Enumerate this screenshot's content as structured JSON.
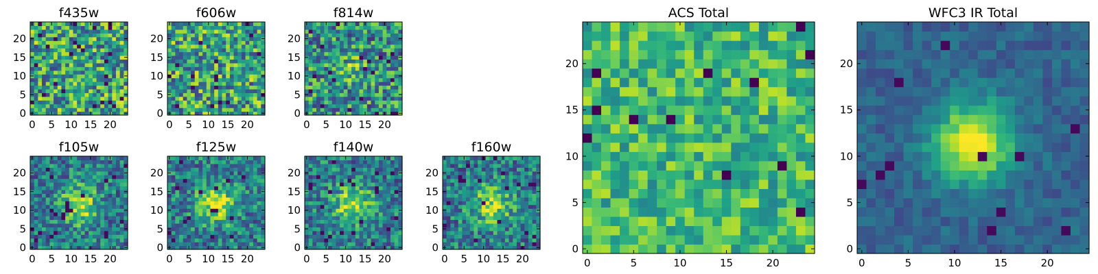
{
  "chart_data": [
    {
      "type": "heatmap",
      "title": "f435w",
      "grid": false,
      "xlim": [
        -0.5,
        24.5
      ],
      "ylim": [
        -0.5,
        24.5
      ],
      "xticks": [
        "0",
        "5",
        "10",
        "15",
        "20"
      ],
      "yticks": [
        "0",
        "5",
        "10",
        "15",
        "20"
      ],
      "rows": 25,
      "cols": 25,
      "colormap": "viridis"
    },
    {
      "type": "heatmap",
      "title": "f606w",
      "grid": false,
      "xlim": [
        -0.5,
        24.5
      ],
      "ylim": [
        -0.5,
        24.5
      ],
      "xticks": [
        "0",
        "5",
        "10",
        "15",
        "20"
      ],
      "yticks": [
        "0",
        "5",
        "10",
        "15",
        "20"
      ],
      "rows": 25,
      "cols": 25,
      "colormap": "viridis"
    },
    {
      "type": "heatmap",
      "title": "f814w",
      "grid": false,
      "xlim": [
        -0.5,
        24.5
      ],
      "ylim": [
        -0.5,
        24.5
      ],
      "xticks": [
        "0",
        "5",
        "10",
        "15",
        "20"
      ],
      "yticks": [
        "0",
        "5",
        "10",
        "15",
        "20"
      ],
      "rows": 25,
      "cols": 25,
      "colormap": "viridis"
    },
    {
      "type": "heatmap",
      "title": "f105w",
      "grid": false,
      "xlim": [
        -0.5,
        24.5
      ],
      "ylim": [
        -0.5,
        24.5
      ],
      "xticks": [
        "0",
        "5",
        "10",
        "15",
        "20"
      ],
      "yticks": [
        "0",
        "5",
        "10",
        "15",
        "20"
      ],
      "rows": 25,
      "cols": 25,
      "colormap": "viridis"
    },
    {
      "type": "heatmap",
      "title": "f125w",
      "grid": false,
      "xlim": [
        -0.5,
        24.5
      ],
      "ylim": [
        -0.5,
        24.5
      ],
      "xticks": [
        "0",
        "5",
        "10",
        "15",
        "20"
      ],
      "yticks": [
        "0",
        "5",
        "10",
        "15",
        "20"
      ],
      "rows": 25,
      "cols": 25,
      "colormap": "viridis"
    },
    {
      "type": "heatmap",
      "title": "f140w",
      "grid": false,
      "xlim": [
        -0.5,
        24.5
      ],
      "ylim": [
        -0.5,
        24.5
      ],
      "xticks": [
        "0",
        "5",
        "10",
        "15",
        "20"
      ],
      "yticks": [
        "0",
        "5",
        "10",
        "15",
        "20"
      ],
      "rows": 25,
      "cols": 25,
      "colormap": "viridis"
    },
    {
      "type": "heatmap",
      "title": "f160w",
      "grid": false,
      "xlim": [
        -0.5,
        24.5
      ],
      "ylim": [
        -0.5,
        24.5
      ],
      "xticks": [
        "0",
        "5",
        "10",
        "15",
        "20"
      ],
      "yticks": [
        "0",
        "5",
        "10",
        "15",
        "20"
      ],
      "rows": 25,
      "cols": 25,
      "colormap": "viridis"
    },
    {
      "type": "heatmap",
      "title": "ACS Total",
      "grid": false,
      "xlim": [
        -0.5,
        24.5
      ],
      "ylim": [
        -0.5,
        24.5
      ],
      "xticks": [
        "0",
        "5",
        "10",
        "15",
        "20"
      ],
      "yticks": [
        "0",
        "5",
        "10",
        "15",
        "20"
      ],
      "rows": 25,
      "cols": 25,
      "colormap": "viridis"
    },
    {
      "type": "heatmap",
      "title": "WFC3 IR Total",
      "grid": false,
      "xlim": [
        -0.5,
        24.5
      ],
      "ylim": [
        -0.5,
        24.5
      ],
      "xticks": [
        "0",
        "5",
        "10",
        "15",
        "20"
      ],
      "yticks": [
        "0",
        "5",
        "10",
        "15",
        "20"
      ],
      "rows": 25,
      "cols": 25,
      "colormap": "viridis"
    }
  ]
}
